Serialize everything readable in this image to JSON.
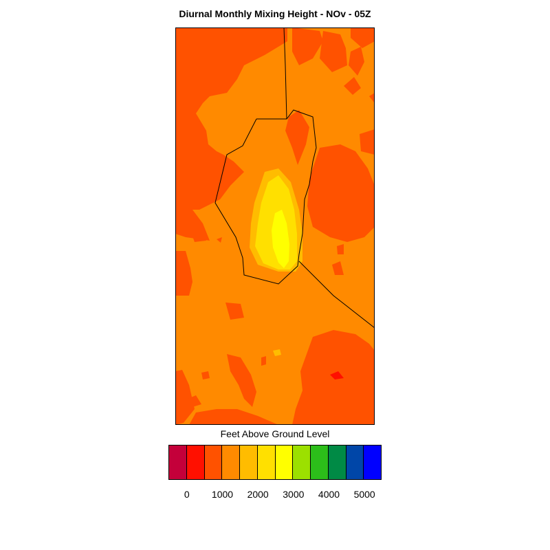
{
  "title": "Diurnal Monthly Mixing Height - NOv - 05Z",
  "colorbar": {
    "title": "Feet Above Ground Level",
    "colors": [
      "#c4003a",
      "#ff1000",
      "#ff5200",
      "#ff8a00",
      "#ffbc00",
      "#ffe000",
      "#ffff00",
      "#9ce000",
      "#2cbe1a",
      "#008a45",
      "#0046a8",
      "#0000ff"
    ],
    "tick_labels": [
      "0",
      "1000",
      "2000",
      "3000",
      "4000",
      "5000"
    ]
  },
  "map_colors": {
    "base": "#ff8a00",
    "low": "#ff5200",
    "lowest": "#ff1000",
    "mid": "#ffbc00",
    "high": "#ffe000",
    "peak": "#ffff00",
    "boundary": "#000000"
  }
}
